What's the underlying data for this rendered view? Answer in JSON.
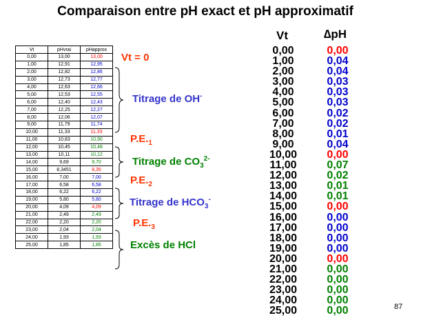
{
  "title": "Comparaison entre pH exact et pH approximatif",
  "table": {
    "headers": [
      "Vt",
      "pHvrai",
      "pHapprox"
    ],
    "rows": [
      [
        "0,00",
        "13,00",
        "13,00",
        "red"
      ],
      [
        "1,00",
        "12,91",
        "12,95",
        "blue"
      ],
      [
        "2,00",
        "12,82",
        "12,86",
        "blue"
      ],
      [
        "3,00",
        "12,73",
        "12,77",
        "blue"
      ],
      [
        "4,00",
        "12,63",
        "12,66",
        "blue"
      ],
      [
        "5,00",
        "12,53",
        "12,55",
        "blue"
      ],
      [
        "6,00",
        "12,40",
        "12,43",
        "blue"
      ],
      [
        "7,00",
        "12,25",
        "12,27",
        "blue"
      ],
      [
        "8,00",
        "12,06",
        "12,07",
        "blue"
      ],
      [
        "9,00",
        "11,79",
        "11,74",
        "blue"
      ],
      [
        "10,00",
        "11,33",
        "11,33",
        "red"
      ],
      [
        "11,00",
        "10,83",
        "10,90",
        "green"
      ],
      [
        "12,00",
        "10,45",
        "10,48",
        "green"
      ],
      [
        "13,00",
        "10,11",
        "10,12",
        "green"
      ],
      [
        "14,00",
        "9,69",
        "9,70",
        "green"
      ],
      [
        "15,00",
        "8,3451",
        "8,35",
        "red"
      ],
      [
        "16,00",
        "7,00",
        "7,00",
        "blue"
      ],
      [
        "17,00",
        "6,58",
        "6,58",
        "blue"
      ],
      [
        "18,00",
        "6,22",
        "6,22",
        "blue"
      ],
      [
        "19,00",
        "5,80",
        "5,80",
        "blue"
      ],
      [
        "20,00",
        "4,09",
        "4,09",
        "red"
      ],
      [
        "21,00",
        "2,49",
        "2,49",
        "green"
      ],
      [
        "22,00",
        "2,20",
        "2,20",
        "green"
      ],
      [
        "23,00",
        "2,04",
        "2,04",
        "green"
      ],
      [
        "24,00",
        "1,93",
        "1,93",
        "green"
      ],
      [
        "25,00",
        "1,85",
        "1,85",
        "green"
      ]
    ]
  },
  "labels": {
    "vt0": "Vt = 0",
    "titrage_oh": "Titrage de OH",
    "titrage_oh_sup": "-",
    "pe1": "P.E.",
    "pe1_sub": "1",
    "titrage_co3": "Titrage de CO",
    "titrage_co3_sub": "3",
    "titrage_co3_sup": "2-",
    "pe2": "P.E.",
    "pe2_sub": "2",
    "titrage_hco3": "Titrage de HCO",
    "titrage_hco3_sub": "3",
    "titrage_hco3_sup": "-",
    "pe3": "P.E.",
    "pe3_sub": "3",
    "exces": "Excès de HCl"
  },
  "right": {
    "vt_header": "Vt",
    "dph_header": "∆pH",
    "vt": [
      "0,00",
      "1,00",
      "2,00",
      "3,00",
      "4,00",
      "5,00",
      "6,00",
      "7,00",
      "8,00",
      "9,00",
      "10,00",
      "11,00",
      "12,00",
      "13,00",
      "14,00",
      "15,00",
      "16,00",
      "17,00",
      "18,00",
      "19,00",
      "20,00",
      "21,00",
      "22,00",
      "23,00",
      "24,00",
      "25,00"
    ],
    "dph": [
      [
        "0,00",
        "red"
      ],
      [
        "0,04",
        "blue"
      ],
      [
        "0,04",
        "blue"
      ],
      [
        "0,03",
        "blue"
      ],
      [
        "0,03",
        "blue"
      ],
      [
        "0,03",
        "blue"
      ],
      [
        "0,02",
        "blue"
      ],
      [
        "0,02",
        "blue"
      ],
      [
        "0,01",
        "blue"
      ],
      [
        "0,04",
        "blue"
      ],
      [
        "0,00",
        "red"
      ],
      [
        "0,07",
        "green"
      ],
      [
        "0,02",
        "green"
      ],
      [
        "0,01",
        "green"
      ],
      [
        "0,01",
        "green"
      ],
      [
        "0,00",
        "red"
      ],
      [
        "0,00",
        "blue"
      ],
      [
        "0,00",
        "blue"
      ],
      [
        "0,00",
        "blue"
      ],
      [
        "0,00",
        "blue"
      ],
      [
        "0,00",
        "red"
      ],
      [
        "0,00",
        "green"
      ],
      [
        "0,00",
        "green"
      ],
      [
        "0,00",
        "green"
      ],
      [
        "0,00",
        "green"
      ],
      [
        "0,00",
        "green"
      ]
    ]
  },
  "colors": {
    "red": "#ff0000",
    "blue": "#0000cc",
    "green": "#008000",
    "orange_label": "#ff3300",
    "blue_label": "#3333cc",
    "green_label": "#008000"
  },
  "page_number": "87"
}
